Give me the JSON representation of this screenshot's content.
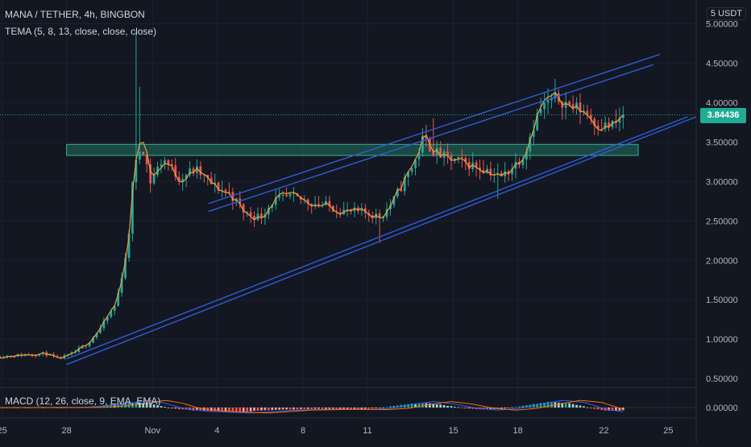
{
  "header": {
    "symbol": "MANA / TETHER",
    "interval": "4h",
    "exchange": "BINGBON",
    "indicator": "TEMA (5, 8, 13, close, close, close)",
    "currency": "5 USDT"
  },
  "macd_label": "MACD (12, 26, close, 9, EMA, EMA)",
  "last_price_label": "3.84436",
  "colors": {
    "background": "#131722",
    "up": "#26a69a",
    "down": "#ef5350",
    "channel": "#2f5dd4",
    "tema": "#e6a23c",
    "zone_fill": "#1f5a4e",
    "zone_stroke": "#2fb39a",
    "macd_line": "#2962ff",
    "signal_line": "#ff6d00"
  },
  "chart_data": {
    "type": "candlestick",
    "title": "MANA / TETHER, 4h, BINGBON",
    "y_ticks": [
      "5.00000",
      "4.50000",
      "4.00000",
      "3.50000",
      "3.00000",
      "2.50000",
      "2.00000",
      "1.50000",
      "1.00000",
      "0.50000"
    ],
    "y_tick_values": [
      5.0,
      4.5,
      4.0,
      3.5,
      3.0,
      2.5,
      2.0,
      1.5,
      1.0,
      0.5
    ],
    "ylim": [
      0.4,
      5.3
    ],
    "x_ticks": [
      "25",
      "28",
      "Nov",
      "4",
      "8",
      "11",
      "15",
      "18",
      "22",
      "25"
    ],
    "x_tick_days": [
      25,
      28,
      32,
      35,
      39,
      42,
      46,
      49,
      53,
      56
    ],
    "x_range_days": [
      24.9,
      57.3
    ],
    "price_series_days": [
      24.9,
      53.9
    ],
    "price_path": [
      [
        24.9,
        0.78
      ],
      [
        27.0,
        0.82
      ],
      [
        27.6,
        0.75
      ],
      [
        28.3,
        0.82
      ],
      [
        29.0,
        0.95
      ],
      [
        29.6,
        1.15
      ],
      [
        30.3,
        1.45
      ],
      [
        30.6,
        1.85
      ],
      [
        30.9,
        2.3
      ],
      [
        31.0,
        2.95
      ],
      [
        31.3,
        3.3
      ],
      [
        31.5,
        3.5
      ],
      [
        31.9,
        3.0
      ],
      [
        32.5,
        3.3
      ],
      [
        33.2,
        3.05
      ],
      [
        34.0,
        3.15
      ],
      [
        34.8,
        2.95
      ],
      [
        35.6,
        2.85
      ],
      [
        36.3,
        2.6
      ],
      [
        37.0,
        2.55
      ],
      [
        37.6,
        2.75
      ],
      [
        38.4,
        2.8
      ],
      [
        39.2,
        2.75
      ],
      [
        40.0,
        2.7
      ],
      [
        41.0,
        2.62
      ],
      [
        42.0,
        2.6
      ],
      [
        42.6,
        2.55
      ],
      [
        43.2,
        2.75
      ],
      [
        43.7,
        3.0
      ],
      [
        44.2,
        3.25
      ],
      [
        44.6,
        3.55
      ],
      [
        45.0,
        3.4
      ],
      [
        45.6,
        3.3
      ],
      [
        46.3,
        3.25
      ],
      [
        47.0,
        3.2
      ],
      [
        47.6,
        3.15
      ],
      [
        48.2,
        3.05
      ],
      [
        48.8,
        3.2
      ],
      [
        49.3,
        3.35
      ],
      [
        49.7,
        3.7
      ],
      [
        50.0,
        3.9
      ],
      [
        50.4,
        4.0
      ],
      [
        50.9,
        4.05
      ],
      [
        51.5,
        3.95
      ],
      [
        52.1,
        3.9
      ],
      [
        52.6,
        3.75
      ],
      [
        53.1,
        3.7
      ],
      [
        53.5,
        3.72
      ],
      [
        53.9,
        3.84
      ]
    ],
    "spikes": [
      [
        31.2,
        4.9
      ],
      [
        31.35,
        4.2
      ],
      [
        45.0,
        3.8
      ],
      [
        50.7,
        4.3
      ],
      [
        42.6,
        2.22
      ],
      [
        48.0,
        2.78
      ]
    ],
    "last_price": 3.84436,
    "support_zone": {
      "from_day": 28.0,
      "to_day": 54.6,
      "top": 3.47,
      "bottom": 3.33
    },
    "channel_upper": [
      [
        [
          34.6,
          2.62
        ],
        [
          55.3,
          4.48
        ]
      ],
      [
        [
          34.6,
          2.72
        ],
        [
          55.6,
          4.61
        ]
      ]
    ],
    "channel_lower": [
      [
        [
          28.0,
          0.68
        ],
        [
          57.3,
          3.82
        ]
      ],
      [
        [
          28.0,
          0.75
        ],
        [
          56.9,
          3.82
        ]
      ]
    ],
    "macd": {
      "label": "MACD (12, 26, close, 9, EMA, EMA)",
      "y_ticks": [
        "0.00000"
      ],
      "hist_profile": [
        [
          24.9,
          0.0
        ],
        [
          28.5,
          0.01
        ],
        [
          29.5,
          0.12
        ],
        [
          30.5,
          0.28
        ],
        [
          31.2,
          0.42
        ],
        [
          32.0,
          0.25
        ],
        [
          32.8,
          -0.05
        ],
        [
          34.0,
          -0.22
        ],
        [
          36.0,
          -0.32
        ],
        [
          38.0,
          -0.15
        ],
        [
          40.0,
          -0.1
        ],
        [
          41.5,
          -0.12
        ],
        [
          42.5,
          -0.05
        ],
        [
          43.5,
          0.18
        ],
        [
          44.5,
          0.35
        ],
        [
          45.5,
          0.2
        ],
        [
          46.5,
          -0.05
        ],
        [
          47.5,
          -0.15
        ],
        [
          48.5,
          -0.05
        ],
        [
          49.5,
          0.2
        ],
        [
          50.5,
          0.42
        ],
        [
          51.5,
          0.3
        ],
        [
          52.5,
          -0.1
        ],
        [
          53.3,
          -0.25
        ],
        [
          53.9,
          -0.18
        ]
      ]
    }
  }
}
